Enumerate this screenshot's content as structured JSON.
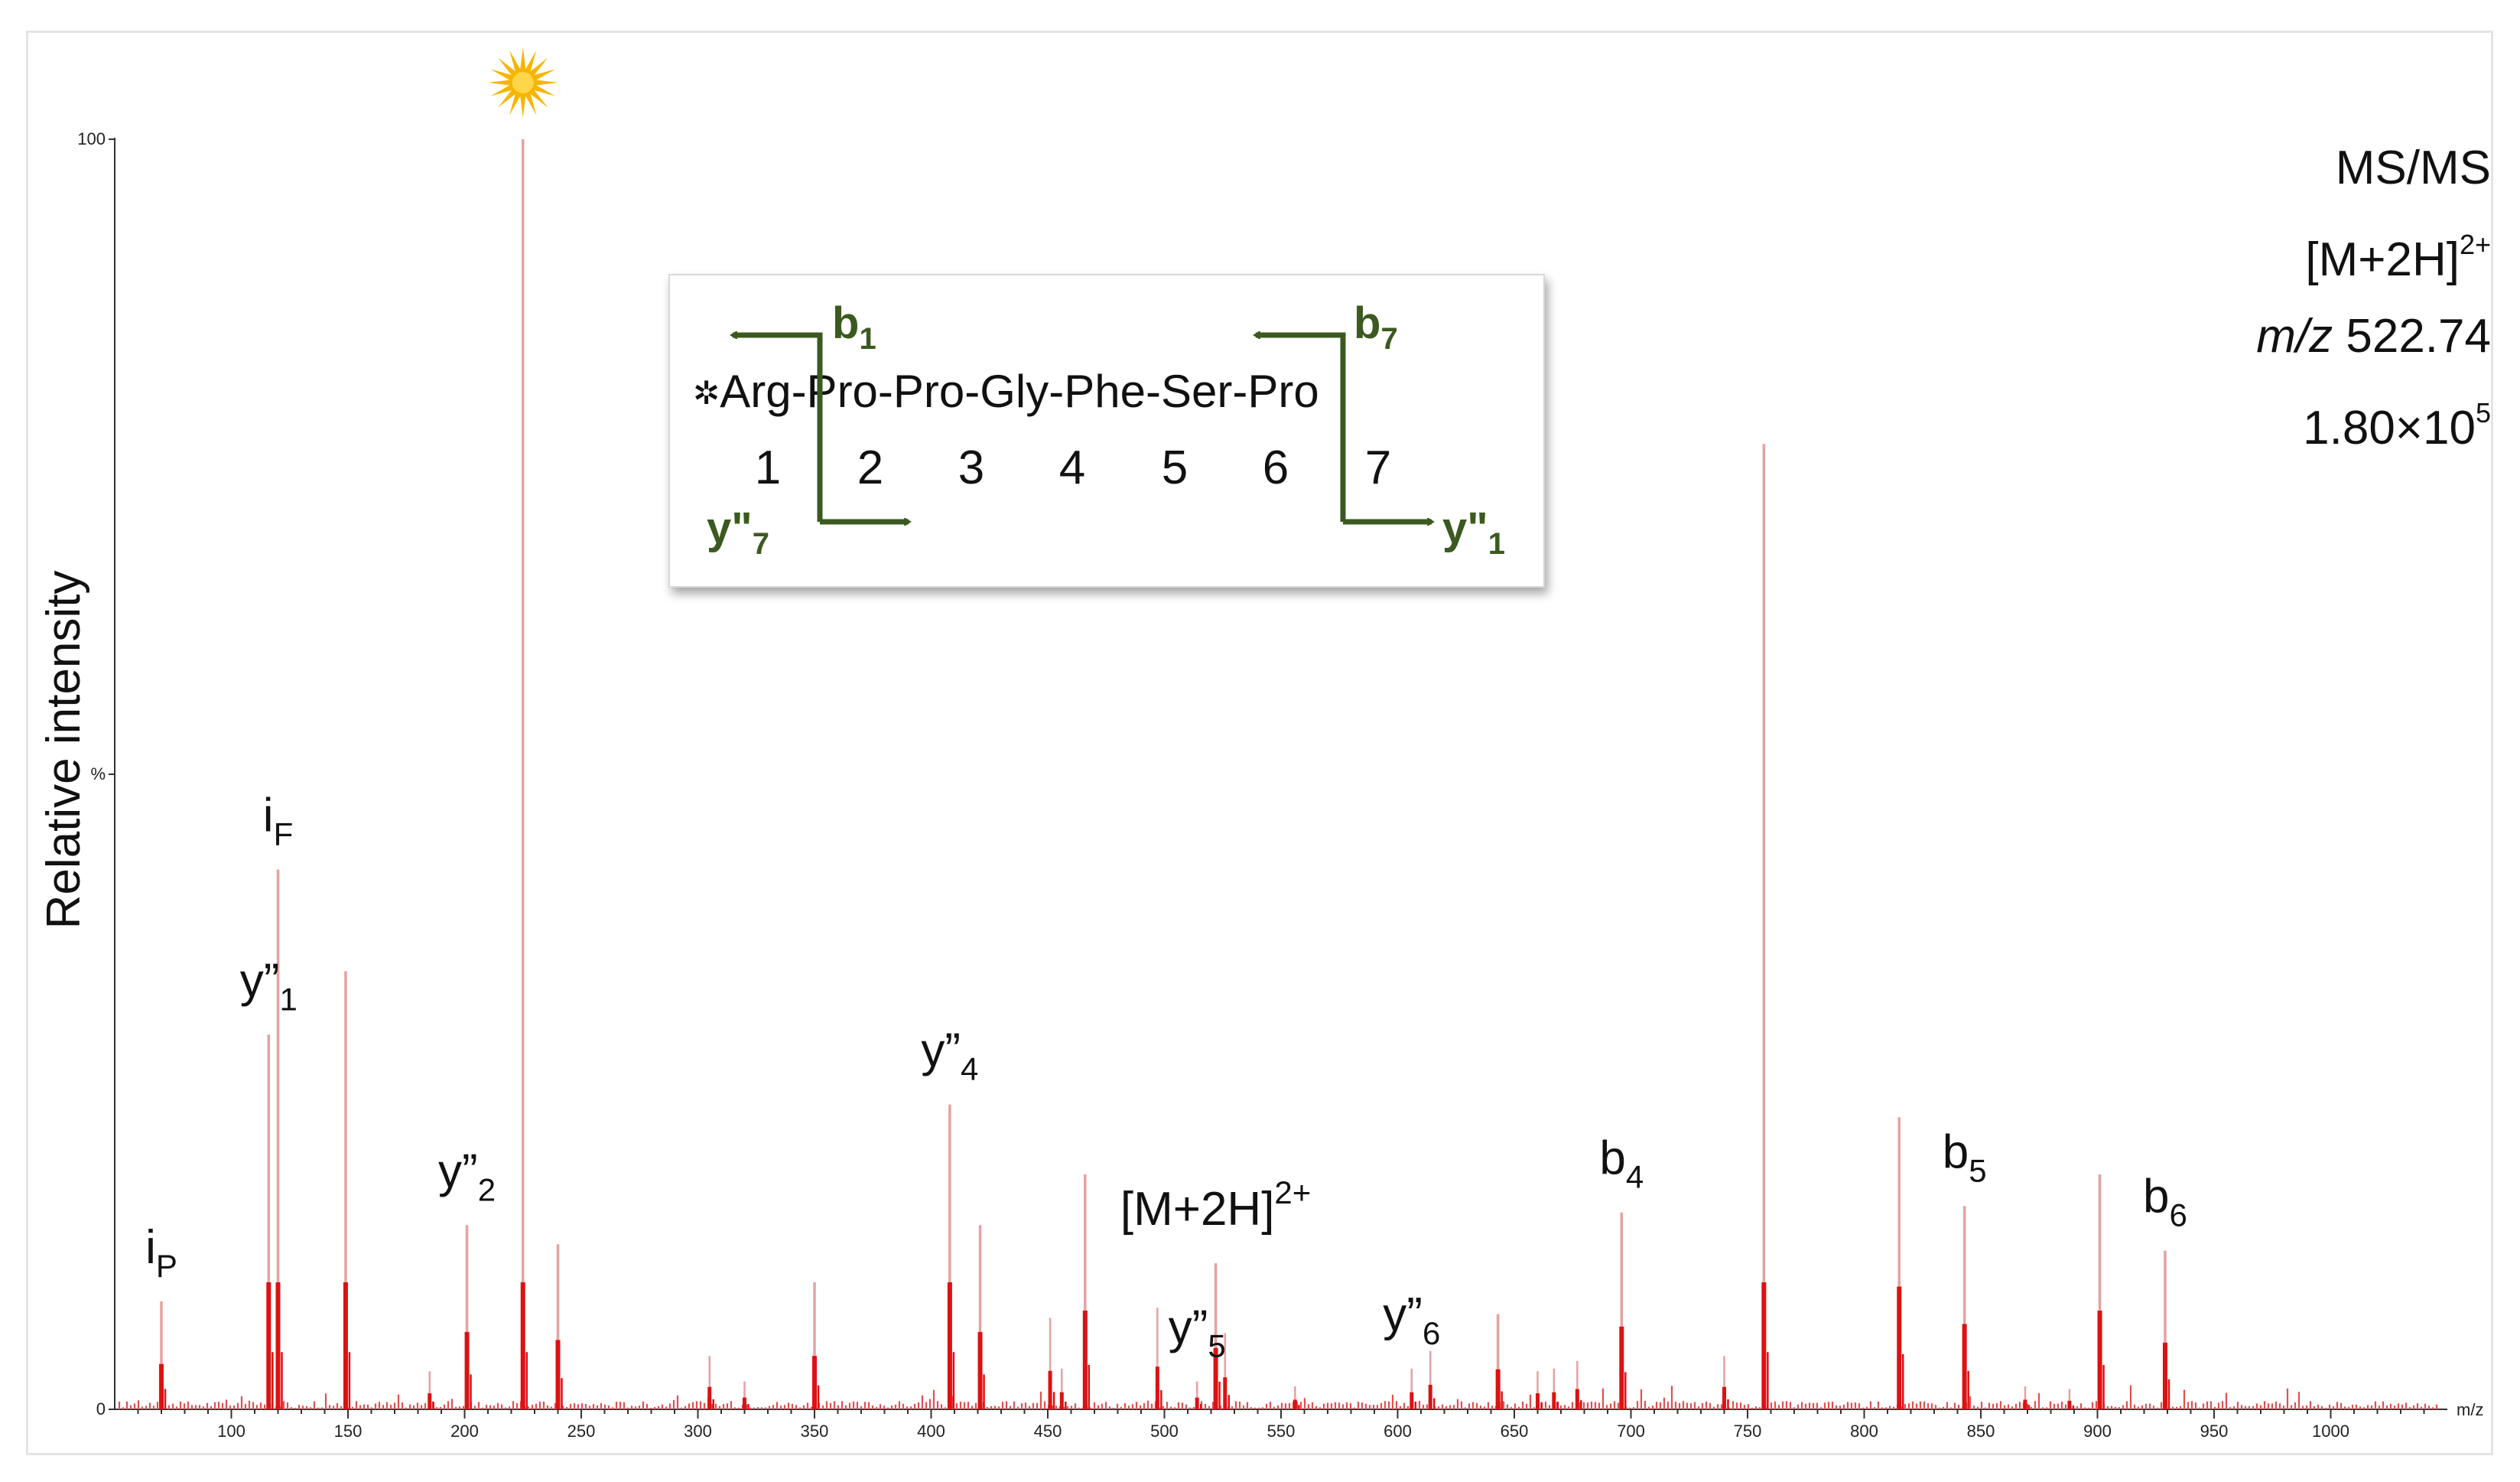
{
  "chart_data": {
    "type": "bar",
    "ylabel": "Relative intensity",
    "xunit": "m/z",
    "y_ticks": [
      {
        "value": 0,
        "label": "0"
      },
      {
        "value": 50,
        "label": "%"
      },
      {
        "value": 100,
        "label": "100"
      }
    ],
    "x_ticks": [
      100,
      150,
      200,
      250,
      300,
      350,
      400,
      450,
      500,
      550,
      600,
      650,
      700,
      750,
      800,
      850,
      900,
      950,
      1000
    ],
    "xlim": [
      50,
      1050
    ],
    "ylim": [
      0,
      100
    ],
    "peaks_major": [
      {
        "mz": 70,
        "i": 8.5
      },
      {
        "mz": 116,
        "i": 29.5
      },
      {
        "mz": 120,
        "i": 42.5
      },
      {
        "mz": 149,
        "i": 34.5
      },
      {
        "mz": 201,
        "i": 14.5
      },
      {
        "mz": 225,
        "i": 100
      },
      {
        "mz": 240,
        "i": 13
      },
      {
        "mz": 350,
        "i": 10
      },
      {
        "mz": 408,
        "i": 24
      },
      {
        "mz": 421,
        "i": 14.5
      },
      {
        "mz": 466,
        "i": 18.5
      },
      {
        "mz": 522,
        "i": 11.5
      },
      {
        "mz": 643,
        "i": 7.5
      },
      {
        "mz": 696,
        "i": 15.5
      },
      {
        "mz": 757,
        "i": 76
      },
      {
        "mz": 815,
        "i": 23
      },
      {
        "mz": 843,
        "i": 16
      },
      {
        "mz": 901,
        "i": 18.5
      },
      {
        "mz": 929,
        "i": 12.5
      }
    ],
    "peaks_minor": [
      {
        "mz": 185,
        "i": 3
      },
      {
        "mz": 305,
        "i": 4.2
      },
      {
        "mz": 320,
        "i": 2.2
      },
      {
        "mz": 451,
        "i": 7.2
      },
      {
        "mz": 456,
        "i": 3.2
      },
      {
        "mz": 497,
        "i": 8
      },
      {
        "mz": 514,
        "i": 2.2
      },
      {
        "mz": 526,
        "i": 6
      },
      {
        "mz": 556,
        "i": 1.8
      },
      {
        "mz": 606,
        "i": 3.2
      },
      {
        "mz": 614,
        "i": 4.6
      },
      {
        "mz": 660,
        "i": 3
      },
      {
        "mz": 667,
        "i": 3.2
      },
      {
        "mz": 677,
        "i": 3.8
      },
      {
        "mz": 740,
        "i": 4.2
      },
      {
        "mz": 869,
        "i": 1.8
      },
      {
        "mz": 888,
        "i": 1.6
      }
    ],
    "peak_labels": [
      {
        "mz": 70,
        "i": 8.5,
        "base": "i",
        "sub": "P",
        "sup": ""
      },
      {
        "mz": 120,
        "i": 42.5,
        "base": "i",
        "sub": "F",
        "sup": ""
      },
      {
        "mz": 116,
        "i": 29.5,
        "base": "y”",
        "sub": "1",
        "sup": ""
      },
      {
        "mz": 201,
        "i": 14.5,
        "base": "y”",
        "sub": "2",
        "sup": ""
      },
      {
        "mz": 408,
        "i": 24,
        "base": "y”",
        "sub": "4",
        "sup": ""
      },
      {
        "mz": 522,
        "i": 11.5,
        "base": "[M+2H]",
        "sub": "",
        "sup": "2+"
      },
      {
        "mz": 514,
        "i": 2.2,
        "base": "y”",
        "sub": "5",
        "sup": ""
      },
      {
        "mz": 606,
        "i": 3.2,
        "base": "y”",
        "sub": "6",
        "sup": ""
      },
      {
        "mz": 696,
        "i": 15.5,
        "base": "b",
        "sub": "4",
        "sup": ""
      },
      {
        "mz": 843,
        "i": 16,
        "base": "b",
        "sub": "5",
        "sup": ""
      },
      {
        "mz": 929,
        "i": 12.5,
        "base": "b",
        "sub": "6",
        "sup": ""
      }
    ],
    "marked_peak_mz": 225
  },
  "info": {
    "line1": "MS/MS",
    "line2_base": "[M+2H]",
    "line2_sup": "2+",
    "line3_italic": "m/z",
    "line3_value": " 522.74",
    "line4_base": "1.80×10",
    "line4_sup": "5"
  },
  "sequence": {
    "tag": "✲",
    "residues": [
      "Arg",
      "Pro",
      "Pro",
      "Gly",
      "Phe",
      "Ser",
      "Pro"
    ],
    "positions": [
      "1",
      "2",
      "3",
      "4",
      "5",
      "6",
      "7"
    ],
    "fragments": {
      "b1": {
        "base": "b",
        "sub": "1"
      },
      "b7": {
        "base": "b",
        "sub": "7"
      },
      "y7": {
        "base": "y\"",
        "sub": "7"
      },
      "y1": {
        "base": "y\"",
        "sub": "1"
      }
    },
    "color": "#3b5a1f"
  },
  "colors": {
    "peak_light": "#e8a0a0",
    "peak_strong": "#dd1111",
    "star": "#f7b500"
  }
}
